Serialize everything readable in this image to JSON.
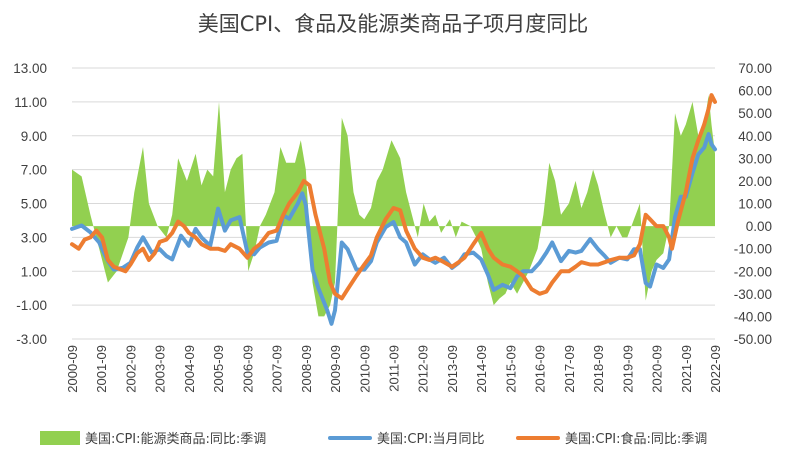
{
  "chart_data": {
    "type": "line",
    "title": "美国CPI、食品及能源类商品子项月度同比",
    "x_ticks": [
      "2000-09",
      "2001-09",
      "2002-09",
      "2003-09",
      "2004-09",
      "2005-09",
      "2006-09",
      "2007-09",
      "2008-09",
      "2009-09",
      "2010-09",
      "2011-09",
      "2012-09",
      "2013-09",
      "2014-09",
      "2015-09",
      "2016-09",
      "2017-09",
      "2018-09",
      "2019-09",
      "2020-09",
      "2021-09",
      "2022-09"
    ],
    "y_left": {
      "ylim": [
        -3,
        13
      ],
      "ticks": [
        "13.00",
        "11.00",
        "9.00",
        "7.00",
        "5.00",
        "3.00",
        "1.00",
        "-1.00",
        "-3.00"
      ],
      "tick_values": [
        13,
        11,
        9,
        7,
        5,
        3,
        1,
        -1,
        -3
      ]
    },
    "y_right": {
      "ylim": [
        -50,
        70
      ],
      "ticks": [
        "70.00",
        "60.00",
        "50.00",
        "40.00",
        "30.00",
        "20.00",
        "10.00",
        "0.00",
        "-10.00",
        "-20.00",
        "-30.00",
        "-40.00",
        "-50.00"
      ],
      "tick_values": [
        70,
        60,
        50,
        40,
        30,
        20,
        10,
        0,
        -10,
        -20,
        -30,
        -40,
        -50
      ]
    },
    "grid": "horizontal",
    "legend": "bottom",
    "series": [
      {
        "name": "美国:CPI:能源类商品:同比:季调",
        "type": "area",
        "axis": "right",
        "color": "#92d050",
        "points": [
          [
            2000.67,
            25
          ],
          [
            2001.0,
            22
          ],
          [
            2001.3,
            5
          ],
          [
            2001.6,
            -10
          ],
          [
            2001.9,
            -25
          ],
          [
            2002.2,
            -20
          ],
          [
            2002.6,
            -5
          ],
          [
            2002.8,
            15
          ],
          [
            2003.1,
            35
          ],
          [
            2003.3,
            10
          ],
          [
            2003.6,
            0
          ],
          [
            2003.9,
            -5
          ],
          [
            2004.1,
            5
          ],
          [
            2004.3,
            30
          ],
          [
            2004.6,
            20
          ],
          [
            2004.9,
            32
          ],
          [
            2005.1,
            18
          ],
          [
            2005.3,
            25
          ],
          [
            2005.5,
            22
          ],
          [
            2005.7,
            55
          ],
          [
            2005.9,
            15
          ],
          [
            2006.1,
            25
          ],
          [
            2006.3,
            30
          ],
          [
            2006.5,
            32
          ],
          [
            2006.7,
            -20
          ],
          [
            2006.9,
            -12
          ],
          [
            2007.1,
            0
          ],
          [
            2007.3,
            5
          ],
          [
            2007.6,
            15
          ],
          [
            2007.8,
            35
          ],
          [
            2008.0,
            28
          ],
          [
            2008.3,
            28
          ],
          [
            2008.5,
            38
          ],
          [
            2008.67,
            25
          ],
          [
            2008.9,
            -25
          ],
          [
            2009.1,
            -40
          ],
          [
            2009.3,
            -40
          ],
          [
            2009.5,
            -35
          ],
          [
            2009.67,
            -25
          ],
          [
            2009.9,
            48
          ],
          [
            2010.1,
            40
          ],
          [
            2010.3,
            15
          ],
          [
            2010.5,
            5
          ],
          [
            2010.67,
            3
          ],
          [
            2010.9,
            8
          ],
          [
            2011.1,
            20
          ],
          [
            2011.3,
            25
          ],
          [
            2011.6,
            38
          ],
          [
            2011.9,
            30
          ],
          [
            2012.1,
            15
          ],
          [
            2012.3,
            5
          ],
          [
            2012.5,
            -5
          ],
          [
            2012.7,
            10
          ],
          [
            2012.9,
            2
          ],
          [
            2013.1,
            5
          ],
          [
            2013.3,
            -3
          ],
          [
            2013.6,
            3
          ],
          [
            2013.8,
            -5
          ],
          [
            2014.0,
            2
          ],
          [
            2014.3,
            0
          ],
          [
            2014.5,
            -5
          ],
          [
            2014.67,
            -10
          ],
          [
            2014.9,
            -25
          ],
          [
            2015.1,
            -35
          ],
          [
            2015.3,
            -32
          ],
          [
            2015.5,
            -30
          ],
          [
            2015.67,
            -25
          ],
          [
            2015.9,
            -30
          ],
          [
            2016.1,
            -25
          ],
          [
            2016.3,
            -20
          ],
          [
            2016.6,
            -10
          ],
          [
            2016.8,
            5
          ],
          [
            2017.0,
            28
          ],
          [
            2017.2,
            20
          ],
          [
            2017.4,
            5
          ],
          [
            2017.67,
            10
          ],
          [
            2017.9,
            20
          ],
          [
            2018.1,
            8
          ],
          [
            2018.3,
            15
          ],
          [
            2018.5,
            25
          ],
          [
            2018.67,
            18
          ],
          [
            2018.9,
            5
          ],
          [
            2019.1,
            -5
          ],
          [
            2019.3,
            0
          ],
          [
            2019.5,
            -5
          ],
          [
            2019.67,
            -5
          ],
          [
            2019.9,
            3
          ],
          [
            2020.1,
            10
          ],
          [
            2020.3,
            -33
          ],
          [
            2020.5,
            -20
          ],
          [
            2020.67,
            -15
          ],
          [
            2020.9,
            -12
          ],
          [
            2021.1,
            0
          ],
          [
            2021.3,
            50
          ],
          [
            2021.5,
            40
          ],
          [
            2021.67,
            45
          ],
          [
            2021.9,
            55
          ],
          [
            2022.1,
            40
          ],
          [
            2022.3,
            45
          ],
          [
            2022.45,
            58
          ],
          [
            2022.55,
            45
          ],
          [
            2022.67,
            32
          ]
        ]
      },
      {
        "name": "美国:CPI:当月同比",
        "type": "line",
        "axis": "left",
        "color": "#5b9bd5",
        "points": [
          [
            2000.67,
            3.5
          ],
          [
            2001.0,
            3.7
          ],
          [
            2001.3,
            3.3
          ],
          [
            2001.6,
            2.7
          ],
          [
            2001.9,
            1.6
          ],
          [
            2002.1,
            1.1
          ],
          [
            2002.4,
            1.2
          ],
          [
            2002.67,
            1.5
          ],
          [
            2002.9,
            2.4
          ],
          [
            2003.1,
            3.0
          ],
          [
            2003.4,
            2.1
          ],
          [
            2003.67,
            2.3
          ],
          [
            2003.9,
            1.9
          ],
          [
            2004.1,
            1.7
          ],
          [
            2004.4,
            3.1
          ],
          [
            2004.67,
            2.5
          ],
          [
            2004.9,
            3.5
          ],
          [
            2005.1,
            3.0
          ],
          [
            2005.4,
            2.5
          ],
          [
            2005.67,
            4.7
          ],
          [
            2005.9,
            3.4
          ],
          [
            2006.1,
            4.0
          ],
          [
            2006.4,
            4.2
          ],
          [
            2006.67,
            2.1
          ],
          [
            2006.9,
            2.0
          ],
          [
            2007.1,
            2.4
          ],
          [
            2007.4,
            2.7
          ],
          [
            2007.67,
            2.8
          ],
          [
            2007.9,
            4.3
          ],
          [
            2008.1,
            4.1
          ],
          [
            2008.4,
            5.0
          ],
          [
            2008.55,
            5.6
          ],
          [
            2008.67,
            4.9
          ],
          [
            2008.9,
            1.1
          ],
          [
            2009.1,
            0.0
          ],
          [
            2009.4,
            -1.3
          ],
          [
            2009.55,
            -2.1
          ],
          [
            2009.67,
            -1.3
          ],
          [
            2009.9,
            2.7
          ],
          [
            2010.1,
            2.3
          ],
          [
            2010.4,
            1.1
          ],
          [
            2010.67,
            1.1
          ],
          [
            2010.9,
            1.6
          ],
          [
            2011.1,
            2.7
          ],
          [
            2011.4,
            3.6
          ],
          [
            2011.67,
            3.9
          ],
          [
            2011.9,
            3.0
          ],
          [
            2012.1,
            2.7
          ],
          [
            2012.4,
            1.4
          ],
          [
            2012.67,
            2.0
          ],
          [
            2012.9,
            1.7
          ],
          [
            2013.1,
            1.5
          ],
          [
            2013.4,
            1.8
          ],
          [
            2013.67,
            1.2
          ],
          [
            2013.9,
            1.5
          ],
          [
            2014.1,
            2.0
          ],
          [
            2014.4,
            2.1
          ],
          [
            2014.67,
            1.7
          ],
          [
            2014.9,
            0.8
          ],
          [
            2015.1,
            -0.1
          ],
          [
            2015.4,
            0.2
          ],
          [
            2015.67,
            0.0
          ],
          [
            2015.9,
            0.7
          ],
          [
            2016.1,
            1.0
          ],
          [
            2016.4,
            1.0
          ],
          [
            2016.67,
            1.5
          ],
          [
            2016.9,
            2.1
          ],
          [
            2017.1,
            2.7
          ],
          [
            2017.4,
            1.6
          ],
          [
            2017.67,
            2.2
          ],
          [
            2017.9,
            2.1
          ],
          [
            2018.1,
            2.2
          ],
          [
            2018.4,
            2.9
          ],
          [
            2018.67,
            2.3
          ],
          [
            2018.9,
            1.9
          ],
          [
            2019.1,
            1.5
          ],
          [
            2019.4,
            1.8
          ],
          [
            2019.67,
            1.7
          ],
          [
            2019.9,
            2.3
          ],
          [
            2020.1,
            2.3
          ],
          [
            2020.3,
            0.3
          ],
          [
            2020.45,
            0.1
          ],
          [
            2020.67,
            1.4
          ],
          [
            2020.9,
            1.2
          ],
          [
            2021.1,
            1.7
          ],
          [
            2021.3,
            4.2
          ],
          [
            2021.5,
            5.4
          ],
          [
            2021.67,
            5.4
          ],
          [
            2021.9,
            6.8
          ],
          [
            2022.1,
            7.9
          ],
          [
            2022.3,
            8.3
          ],
          [
            2022.45,
            9.1
          ],
          [
            2022.55,
            8.5
          ],
          [
            2022.67,
            8.2
          ]
        ]
      },
      {
        "name": "美国:CPI:食品:同比:季调",
        "type": "line",
        "axis": "right",
        "color": "#ed7d31",
        "points": [
          [
            2000.67,
            -8
          ],
          [
            2000.9,
            -10
          ],
          [
            2001.1,
            -6
          ],
          [
            2001.3,
            -5
          ],
          [
            2001.5,
            -2
          ],
          [
            2001.7,
            -5
          ],
          [
            2001.9,
            -15
          ],
          [
            2002.1,
            -18
          ],
          [
            2002.3,
            -19
          ],
          [
            2002.5,
            -20
          ],
          [
            2002.67,
            -17
          ],
          [
            2002.9,
            -12
          ],
          [
            2003.1,
            -10
          ],
          [
            2003.3,
            -15
          ],
          [
            2003.5,
            -12
          ],
          [
            2003.67,
            -7
          ],
          [
            2003.9,
            -6
          ],
          [
            2004.1,
            -3
          ],
          [
            2004.3,
            2
          ],
          [
            2004.5,
            0
          ],
          [
            2004.67,
            -3
          ],
          [
            2004.9,
            -5
          ],
          [
            2005.1,
            -8
          ],
          [
            2005.4,
            -10
          ],
          [
            2005.67,
            -10
          ],
          [
            2005.9,
            -11
          ],
          [
            2006.1,
            -8
          ],
          [
            2006.4,
            -10
          ],
          [
            2006.67,
            -14
          ],
          [
            2006.9,
            -10
          ],
          [
            2007.1,
            -8
          ],
          [
            2007.4,
            -3
          ],
          [
            2007.67,
            -2
          ],
          [
            2007.9,
            5
          ],
          [
            2008.1,
            10
          ],
          [
            2008.4,
            15
          ],
          [
            2008.6,
            20
          ],
          [
            2008.8,
            18
          ],
          [
            2009.0,
            5
          ],
          [
            2009.3,
            -10
          ],
          [
            2009.5,
            -25
          ],
          [
            2009.67,
            -30
          ],
          [
            2009.9,
            -32
          ],
          [
            2010.1,
            -28
          ],
          [
            2010.4,
            -22
          ],
          [
            2010.67,
            -17
          ],
          [
            2010.9,
            -13
          ],
          [
            2011.1,
            -5
          ],
          [
            2011.4,
            3
          ],
          [
            2011.67,
            8
          ],
          [
            2011.9,
            7
          ],
          [
            2012.1,
            -2
          ],
          [
            2012.4,
            -10
          ],
          [
            2012.67,
            -14
          ],
          [
            2012.9,
            -15
          ],
          [
            2013.1,
            -14
          ],
          [
            2013.4,
            -16
          ],
          [
            2013.67,
            -18
          ],
          [
            2013.9,
            -16
          ],
          [
            2014.1,
            -14
          ],
          [
            2014.4,
            -8
          ],
          [
            2014.67,
            -3
          ],
          [
            2014.9,
            -10
          ],
          [
            2015.1,
            -14
          ],
          [
            2015.4,
            -17
          ],
          [
            2015.67,
            -18
          ],
          [
            2015.9,
            -20
          ],
          [
            2016.1,
            -22
          ],
          [
            2016.4,
            -28
          ],
          [
            2016.67,
            -30
          ],
          [
            2016.9,
            -29
          ],
          [
            2017.1,
            -25
          ],
          [
            2017.4,
            -20
          ],
          [
            2017.67,
            -20
          ],
          [
            2017.9,
            -18
          ],
          [
            2018.1,
            -16
          ],
          [
            2018.4,
            -17
          ],
          [
            2018.67,
            -17
          ],
          [
            2018.9,
            -16
          ],
          [
            2019.1,
            -15
          ],
          [
            2019.4,
            -14
          ],
          [
            2019.67,
            -14
          ],
          [
            2019.9,
            -13
          ],
          [
            2020.1,
            -8
          ],
          [
            2020.3,
            5
          ],
          [
            2020.45,
            3
          ],
          [
            2020.67,
            0
          ],
          [
            2020.9,
            0
          ],
          [
            2021.1,
            -5
          ],
          [
            2021.2,
            -10
          ],
          [
            2021.4,
            2
          ],
          [
            2021.67,
            15
          ],
          [
            2021.9,
            30
          ],
          [
            2022.1,
            38
          ],
          [
            2022.3,
            45
          ],
          [
            2022.45,
            52
          ],
          [
            2022.55,
            58
          ],
          [
            2022.67,
            55
          ]
        ]
      }
    ]
  }
}
